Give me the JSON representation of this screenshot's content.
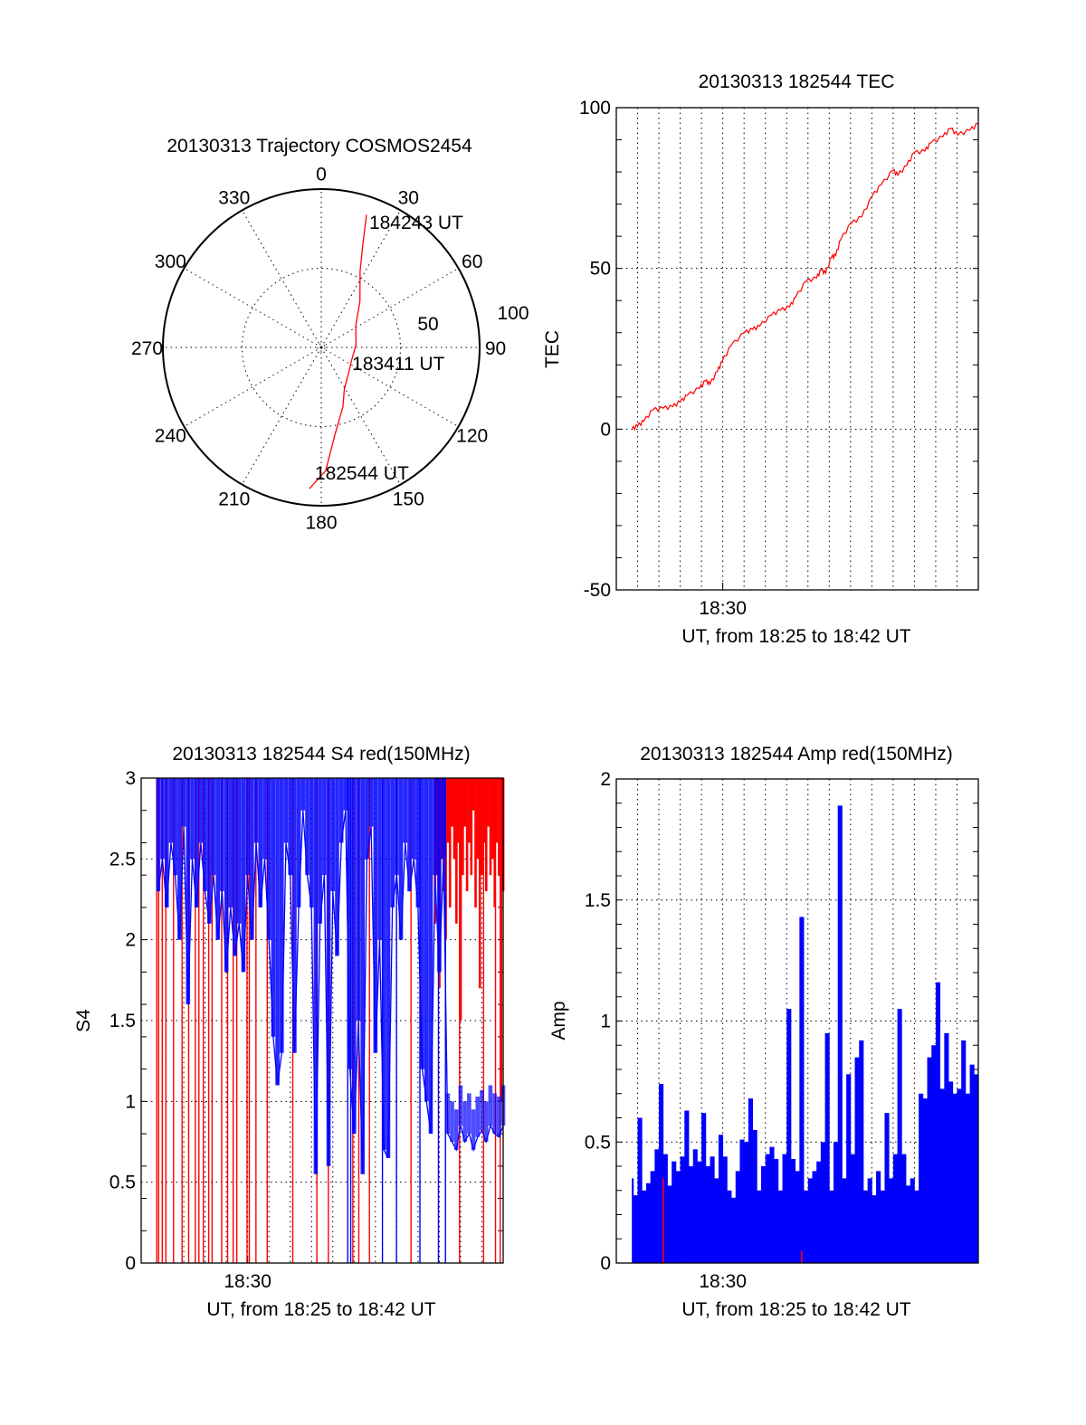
{
  "chart_data": [
    {
      "type": "polar",
      "title": "20130313 Trajectory COSMOS2454",
      "angle_labels": [
        "0",
        "30",
        "60",
        "90",
        "120",
        "150",
        "180",
        "210",
        "240",
        "270",
        "300",
        "330"
      ],
      "radial_labels": [
        "50",
        "100"
      ],
      "rlim": [
        0,
        100
      ],
      "grid": true,
      "trajectory_color": "#ff0000",
      "trajectory": [
        [
          184.8,
          89.5
        ],
        [
          178,
          78
        ],
        [
          171,
          55.6
        ],
        [
          160,
          40
        ],
        [
          151,
          30
        ],
        [
          130,
          23
        ],
        [
          116,
          21
        ],
        [
          85,
          22
        ],
        [
          58,
          25.7
        ],
        [
          40,
          38
        ],
        [
          27,
          54
        ],
        [
          22,
          70
        ],
        [
          18.8,
          88.6
        ]
      ],
      "annotations": [
        {
          "text": "182544 UT",
          "az": 184.8,
          "r": 89.5
        },
        {
          "text": "183411 UT",
          "az": 116,
          "r": 21
        },
        {
          "text": "184243 UT",
          "az": 18.8,
          "r": 88.6
        }
      ]
    },
    {
      "type": "line",
      "title": "20130313 182544 TEC",
      "xlabel": "UT, from 18:25 to 18:42 UT",
      "ylabel": "TEC",
      "xlim_minutes_after_1825": [
        0,
        17
      ],
      "ylim": [
        -50,
        100
      ],
      "yticks": [
        "-50",
        "0",
        "50",
        "100"
      ],
      "xticks": [
        {
          "value": 5,
          "label": "18:30"
        }
      ],
      "grid": true,
      "color": "#ff0000",
      "points": [
        [
          0.73,
          0
        ],
        [
          1.0,
          1
        ],
        [
          1.3,
          2.5
        ],
        [
          1.72,
          6
        ],
        [
          2.2,
          6.5
        ],
        [
          2.64,
          7
        ],
        [
          3.0,
          8.5
        ],
        [
          3.34,
          10.5
        ],
        [
          3.9,
          12.7
        ],
        [
          4.19,
          15
        ],
        [
          4.4,
          14
        ],
        [
          4.75,
          18
        ],
        [
          4.97,
          21
        ],
        [
          5.39,
          26
        ],
        [
          6.02,
          30
        ],
        [
          6.4,
          31
        ],
        [
          6.73,
          32
        ],
        [
          7.29,
          35.5
        ],
        [
          7.7,
          37
        ],
        [
          8.14,
          38
        ],
        [
          8.42,
          41
        ],
        [
          8.91,
          46
        ],
        [
          9.4,
          47
        ],
        [
          9.62,
          49.5
        ],
        [
          9.83,
          48.5
        ],
        [
          10.11,
          53.5
        ],
        [
          10.3,
          54
        ],
        [
          10.54,
          59
        ],
        [
          11.03,
          64
        ],
        [
          11.52,
          66
        ],
        [
          12.02,
          72.5
        ],
        [
          12.44,
          76
        ],
        [
          13.0,
          80.5
        ],
        [
          13.22,
          79
        ],
        [
          13.64,
          82
        ],
        [
          13.99,
          86
        ],
        [
          14.49,
          86.5
        ],
        [
          14.77,
          89
        ],
        [
          15.34,
          91
        ],
        [
          15.69,
          93.5
        ],
        [
          16.04,
          91.5
        ],
        [
          16.6,
          93
        ],
        [
          17.0,
          95
        ]
      ]
    },
    {
      "type": "line",
      "title": "20130313 182544 S4 red(150MHz)",
      "xlabel": "UT, from 18:25 to 18:42 UT",
      "ylabel": "S4",
      "xlim_minutes_after_1825": [
        0,
        17
      ],
      "ylim": [
        0,
        3
      ],
      "yticks": [
        "0",
        "0.5",
        "1",
        "1.5",
        "2",
        "2.5",
        "3"
      ],
      "xticks": [
        {
          "value": 5,
          "label": "18:30"
        }
      ],
      "grid": true,
      "series": [
        {
          "name": "blue",
          "color": "#0000ff",
          "points": [
            [
              0.8,
              2.3
            ],
            [
              1.0,
              2.5
            ],
            [
              1.2,
              2.2
            ],
            [
              1.4,
              2.6
            ],
            [
              1.6,
              2.4
            ],
            [
              1.8,
              2.0
            ],
            [
              2.0,
              2.7
            ],
            [
              2.2,
              1.6
            ],
            [
              2.4,
              2.5
            ],
            [
              2.6,
              2.2
            ],
            [
              2.8,
              2.6
            ],
            [
              3.0,
              2.3
            ],
            [
              3.2,
              2.1
            ],
            [
              3.4,
              2.4
            ],
            [
              3.6,
              2.0
            ],
            [
              3.8,
              2.3
            ],
            [
              4.0,
              1.8
            ],
            [
              4.2,
              2.2
            ],
            [
              4.4,
              1.9
            ],
            [
              4.6,
              2.1
            ],
            [
              4.8,
              1.8
            ],
            [
              5.0,
              2.4
            ],
            [
              5.2,
              2.0
            ],
            [
              5.4,
              2.6
            ],
            [
              5.6,
              2.2
            ],
            [
              5.8,
              2.5
            ],
            [
              6.0,
              2.0
            ],
            [
              6.2,
              1.4
            ],
            [
              6.4,
              1.1
            ],
            [
              6.6,
              1.3
            ],
            [
              6.8,
              2.6
            ],
            [
              7.0,
              2.4
            ],
            [
              7.2,
              1.3
            ],
            [
              7.4,
              2.2
            ],
            [
              7.6,
              2.8
            ],
            [
              7.8,
              2.4
            ],
            [
              8.0,
              2.2
            ],
            [
              8.2,
              0.55
            ],
            [
              8.4,
              2.1
            ],
            [
              8.6,
              2.4
            ],
            [
              8.8,
              0.6
            ],
            [
              9.0,
              2.3
            ],
            [
              9.2,
              1.9
            ],
            [
              9.4,
              2.6
            ],
            [
              9.6,
              2.8
            ],
            [
              9.8,
              1.2
            ],
            [
              10.0,
              0.8
            ],
            [
              10.2,
              1.5
            ],
            [
              10.4,
              0.55
            ],
            [
              10.6,
              2.5
            ],
            [
              10.8,
              2.7
            ],
            [
              11.0,
              1.3
            ],
            [
              11.2,
              2.0
            ],
            [
              11.4,
              0.7
            ],
            [
              11.6,
              0.65
            ],
            [
              11.8,
              2.2
            ],
            [
              12.0,
              2.4
            ],
            [
              12.2,
              2.0
            ],
            [
              12.4,
              2.6
            ],
            [
              12.6,
              2.3
            ],
            [
              12.8,
              2.5
            ],
            [
              13.0,
              2.2
            ],
            [
              13.2,
              1.2
            ],
            [
              13.4,
              1.0
            ],
            [
              13.6,
              0.8
            ],
            [
              13.8,
              2.4
            ],
            [
              14.0,
              1.8
            ],
            [
              14.2,
              2.5
            ],
            [
              14.4,
              0.8
            ],
            [
              14.6,
              0.75
            ],
            [
              14.8,
              0.7
            ],
            [
              15.0,
              0.85
            ],
            [
              15.2,
              0.75
            ],
            [
              15.4,
              0.8
            ],
            [
              15.6,
              0.7
            ],
            [
              15.8,
              0.78
            ],
            [
              16.0,
              0.82
            ],
            [
              16.2,
              0.75
            ],
            [
              16.4,
              0.85
            ],
            [
              16.6,
              0.8
            ],
            [
              16.8,
              0.78
            ],
            [
              17.0,
              0.85
            ]
          ],
          "dropouts_to_zero": [
            9.7,
            9.84,
            11.33,
            11.99,
            13.09,
            13.96,
            14.29
          ]
        },
        {
          "name": "red",
          "color": "#ff0000",
          "dropouts_to_zero": [
            0.73,
            0.82,
            0.99,
            1.16,
            1.52,
            1.92,
            2.23,
            2.54,
            2.71,
            2.92,
            3.17,
            3.33,
            3.78,
            4.06,
            4.32,
            4.49,
            4.97,
            5.08,
            5.39,
            5.92,
            7.12,
            8.25,
            8.79,
            9.94,
            10.22,
            10.72,
            12.67,
            14.95,
            16.08,
            16.64,
            16.86
          ],
          "upper_band": [
            [
              13.8,
              2.1
            ],
            [
              13.9,
              2.4
            ],
            [
              14.0,
              1.7
            ],
            [
              14.1,
              2.5
            ],
            [
              14.2,
              2.3
            ],
            [
              14.3,
              2.0
            ],
            [
              14.4,
              2.6
            ],
            [
              14.5,
              2.2
            ],
            [
              14.6,
              2.7
            ],
            [
              14.7,
              2.5
            ],
            [
              14.8,
              2.1
            ],
            [
              14.9,
              2.6
            ],
            [
              15.0,
              1.5
            ],
            [
              15.1,
              2.4
            ],
            [
              15.2,
              2.7
            ],
            [
              15.3,
              2.3
            ],
            [
              15.4,
              2.6
            ],
            [
              15.5,
              2.4
            ],
            [
              15.6,
              2.8
            ],
            [
              15.7,
              2.2
            ],
            [
              15.8,
              2.5
            ],
            [
              15.9,
              1.7
            ],
            [
              16.0,
              2.4
            ],
            [
              16.1,
              2.6
            ],
            [
              16.2,
              2.3
            ],
            [
              16.3,
              2.7
            ],
            [
              16.4,
              2.4
            ],
            [
              16.5,
              2.5
            ],
            [
              16.6,
              2.2
            ],
            [
              16.7,
              2.6
            ],
            [
              16.8,
              2.4
            ],
            [
              16.9,
              1.0
            ],
            [
              17.0,
              2.3
            ]
          ]
        }
      ]
    },
    {
      "type": "bar",
      "title": "20130313 182544 Amp red(150MHz)",
      "xlabel": "UT, from 18:25 to 18:42 UT",
      "ylabel": "Amp",
      "xlim_minutes_after_1825": [
        0,
        17
      ],
      "ylim": [
        0,
        2
      ],
      "yticks": [
        "0",
        "0.5",
        "1",
        "1.5",
        "2"
      ],
      "xticks": [
        {
          "value": 5,
          "label": "18:30"
        }
      ],
      "grid": true,
      "bar_width_minutes": 0.2,
      "series": [
        {
          "name": "blue",
          "color": "#0000ff",
          "points": [
            [
              0.8,
              0.35
            ],
            [
              1.0,
              0.28
            ],
            [
              1.2,
              0.6
            ],
            [
              1.4,
              0.3
            ],
            [
              1.6,
              0.33
            ],
            [
              1.8,
              0.38
            ],
            [
              2.0,
              0.47
            ],
            [
              2.2,
              0.74
            ],
            [
              2.4,
              0.45
            ],
            [
              2.6,
              0.32
            ],
            [
              2.8,
              0.42
            ],
            [
              3.0,
              0.38
            ],
            [
              3.2,
              0.44
            ],
            [
              3.4,
              0.63
            ],
            [
              3.6,
              0.4
            ],
            [
              3.8,
              0.47
            ],
            [
              4.0,
              0.42
            ],
            [
              4.2,
              0.62
            ],
            [
              4.4,
              0.4
            ],
            [
              4.6,
              0.44
            ],
            [
              4.8,
              0.35
            ],
            [
              5.0,
              0.53
            ],
            [
              5.2,
              0.44
            ],
            [
              5.4,
              0.3
            ],
            [
              5.6,
              0.27
            ],
            [
              5.8,
              0.38
            ],
            [
              6.0,
              0.51
            ],
            [
              6.2,
              0.5
            ],
            [
              6.4,
              0.68
            ],
            [
              6.6,
              0.55
            ],
            [
              6.8,
              0.3
            ],
            [
              7.0,
              0.4
            ],
            [
              7.2,
              0.45
            ],
            [
              7.4,
              0.48
            ],
            [
              7.6,
              0.43
            ],
            [
              7.8,
              0.3
            ],
            [
              8.0,
              0.45
            ],
            [
              8.2,
              1.05
            ],
            [
              8.4,
              0.43
            ],
            [
              8.6,
              0.38
            ],
            [
              8.8,
              1.43
            ],
            [
              9.0,
              0.3
            ],
            [
              9.2,
              0.35
            ],
            [
              9.4,
              0.38
            ],
            [
              9.6,
              0.42
            ],
            [
              9.8,
              0.5
            ],
            [
              10.0,
              0.95
            ],
            [
              10.2,
              0.3
            ],
            [
              10.4,
              0.5
            ],
            [
              10.6,
              1.89
            ],
            [
              10.8,
              0.35
            ],
            [
              11.0,
              0.78
            ],
            [
              11.2,
              0.45
            ],
            [
              11.4,
              0.85
            ],
            [
              11.6,
              0.92
            ],
            [
              11.8,
              0.3
            ],
            [
              12.0,
              0.35
            ],
            [
              12.2,
              0.28
            ],
            [
              12.4,
              0.38
            ],
            [
              12.6,
              0.3
            ],
            [
              12.8,
              0.62
            ],
            [
              13.0,
              0.35
            ],
            [
              13.2,
              0.45
            ],
            [
              13.4,
              1.05
            ],
            [
              13.6,
              0.45
            ],
            [
              13.8,
              0.32
            ],
            [
              14.0,
              0.35
            ],
            [
              14.2,
              0.3
            ],
            [
              14.4,
              0.7
            ],
            [
              14.6,
              0.68
            ],
            [
              14.8,
              0.85
            ],
            [
              15.0,
              0.9
            ],
            [
              15.2,
              1.16
            ],
            [
              15.4,
              0.72
            ],
            [
              15.6,
              0.95
            ],
            [
              15.8,
              0.75
            ],
            [
              16.0,
              0.7
            ],
            [
              16.2,
              0.72
            ],
            [
              16.4,
              0.92
            ],
            [
              16.6,
              0.7
            ],
            [
              16.8,
              0.82
            ],
            [
              17.0,
              0.78
            ]
          ]
        },
        {
          "name": "red",
          "color": "#ff0000",
          "points": [
            [
              2.2,
              0.35
            ],
            [
              8.7,
              0.05
            ]
          ]
        }
      ]
    }
  ]
}
